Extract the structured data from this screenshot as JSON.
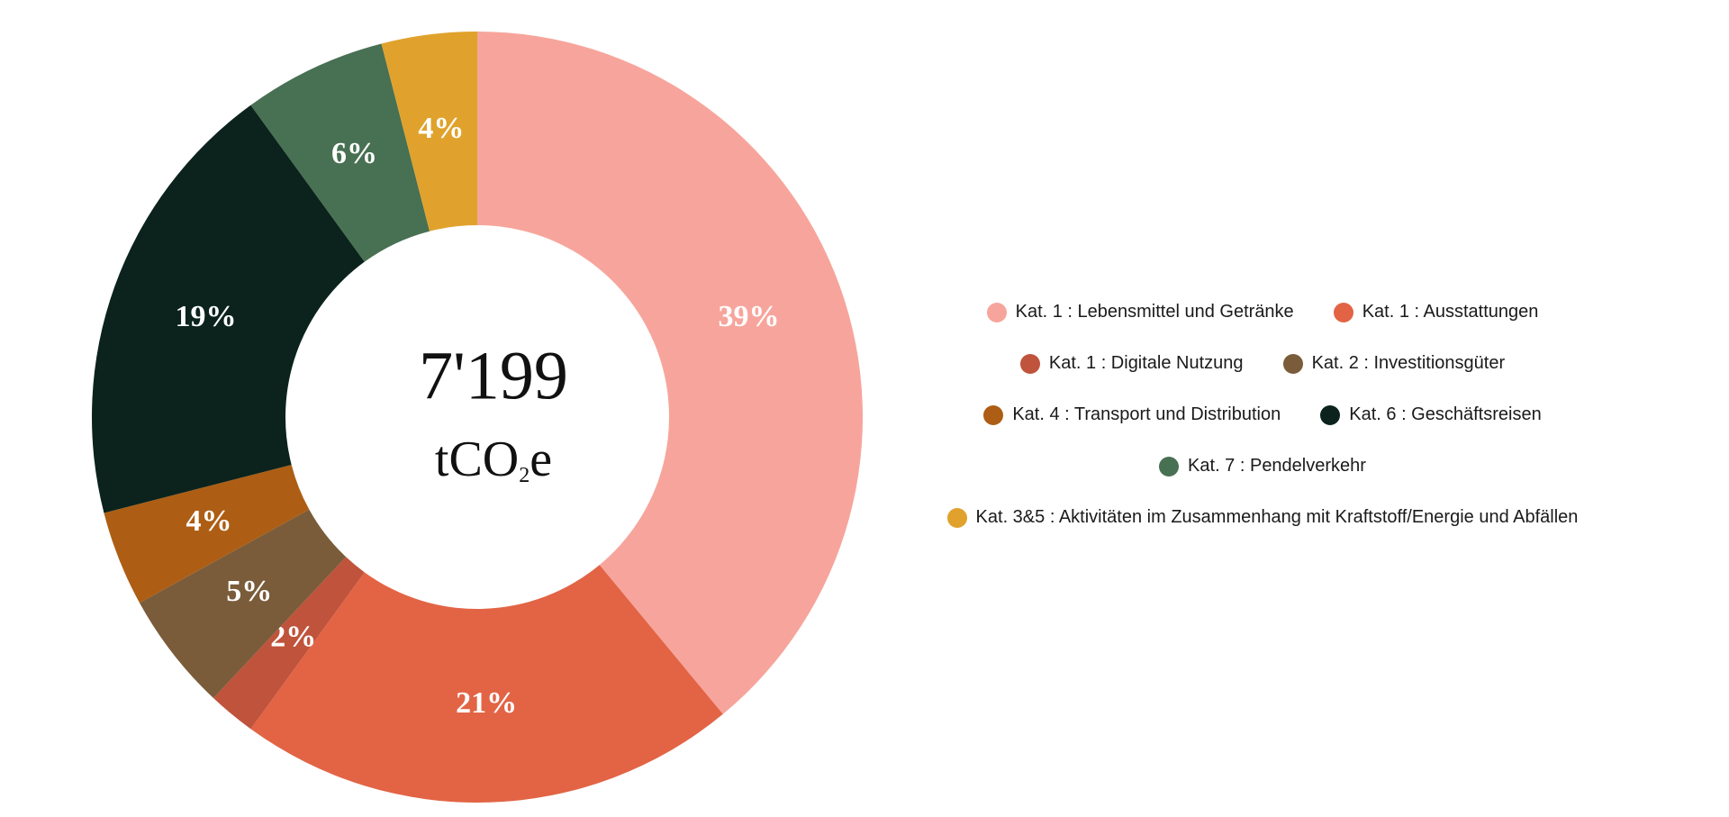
{
  "chart_data": {
    "type": "pie",
    "categories": [
      "Kat. 1 : Lebensmittel und Getränke",
      "Kat. 1 : Ausstattungen",
      "Kat. 1 : Digitale Nutzung",
      "Kat. 2 : Investitionsgüter",
      "Kat. 4 : Transport und Distribution",
      "Kat. 6 : Geschäftsreisen",
      "Kat. 7 : Pendelverkehr",
      "Kat. 3&5 : Aktivitäten im Zusammenhang mit Kraftstoff/Energie und Abfällen"
    ],
    "values": [
      39,
      21,
      2,
      5,
      4,
      19,
      6,
      4
    ],
    "value_labels": [
      "39%",
      "21%",
      "2%",
      "5%",
      "4%",
      "19%",
      "6%",
      "4%"
    ],
    "colors": [
      "#f7a59c",
      "#e26445",
      "#c0533b",
      "#7a5c3a",
      "#ad5e14",
      "#0b231c",
      "#487052",
      "#e0a22c"
    ],
    "center_value": "7'199",
    "center_unit": "tCO",
    "center_unit_subscript": "2",
    "center_unit_suffix": "e"
  }
}
